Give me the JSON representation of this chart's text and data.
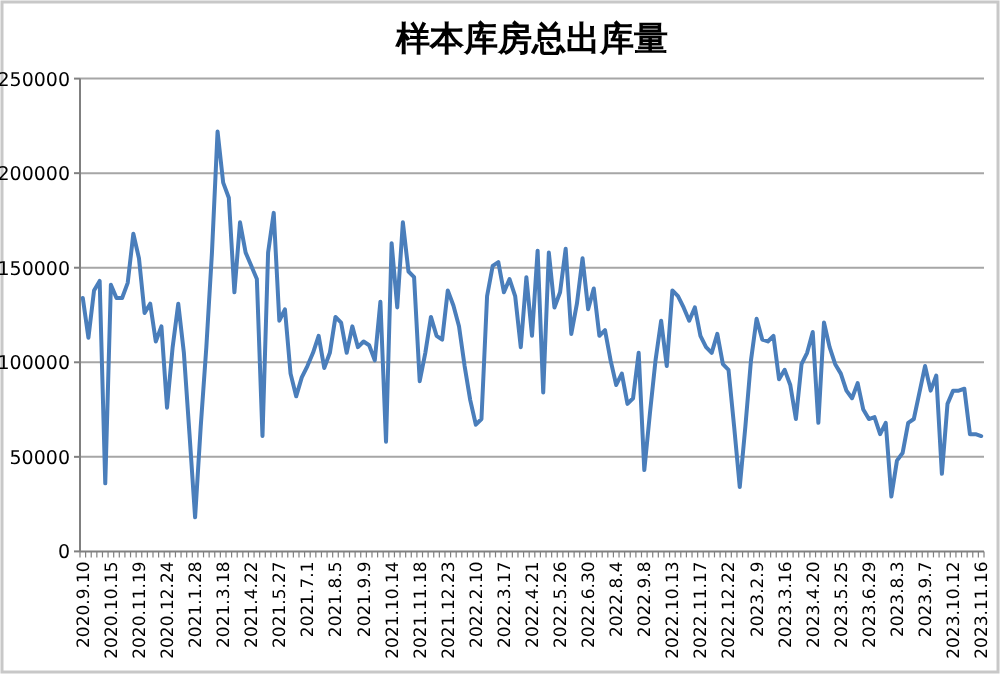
{
  "chart_data": {
    "type": "line",
    "title": "样本库房总出库量",
    "categories": [
      "2020.9.10",
      null,
      null,
      null,
      null,
      "2020.10.15",
      null,
      null,
      null,
      null,
      "2020.11.19",
      null,
      null,
      null,
      null,
      "2020.12.24",
      null,
      null,
      null,
      null,
      "2021.1.28",
      null,
      null,
      null,
      null,
      "2021.3.18",
      null,
      null,
      null,
      null,
      "2021.4.22",
      null,
      null,
      null,
      null,
      "2021.5.27",
      null,
      null,
      null,
      null,
      "2021.7.1",
      null,
      null,
      null,
      null,
      "2021.8.5",
      null,
      null,
      null,
      null,
      "2021.9.9",
      null,
      null,
      null,
      null,
      "2021.10.14",
      null,
      null,
      null,
      null,
      "2021.11.18",
      null,
      null,
      null,
      null,
      "2021.12.23",
      null,
      null,
      null,
      null,
      "2022.2.10",
      null,
      null,
      null,
      null,
      "2022.3.17",
      null,
      null,
      null,
      null,
      "2022.4.21",
      null,
      null,
      null,
      null,
      "2022.5.26",
      null,
      null,
      null,
      null,
      "2022.6.30",
      null,
      null,
      null,
      null,
      "2022.8.4",
      null,
      null,
      null,
      null,
      "2022.9.8",
      null,
      null,
      null,
      null,
      "2022.10.13",
      null,
      null,
      null,
      null,
      "2022.11.17",
      null,
      null,
      null,
      null,
      "2022.12.22",
      null,
      null,
      null,
      null,
      "2023.2.9",
      null,
      null,
      null,
      null,
      "2023.3.16",
      null,
      null,
      null,
      null,
      "2023.4.20",
      null,
      null,
      null,
      null,
      "2023.5.25",
      null,
      null,
      null,
      null,
      "2023.6.29",
      null,
      null,
      null,
      null,
      "2023.8.3",
      null,
      null,
      null,
      null,
      "2023.9.7",
      null,
      null,
      null,
      null,
      "2023.10.12",
      null,
      null,
      null,
      null,
      "2023.11.16"
    ],
    "values": [
      134000,
      113000,
      138000,
      143000,
      36000,
      141000,
      134000,
      134000,
      142000,
      168000,
      155000,
      126000,
      131000,
      111000,
      119000,
      76000,
      108000,
      131000,
      105000,
      62000,
      18000,
      66000,
      108000,
      158000,
      222000,
      195000,
      187000,
      137000,
      174000,
      158000,
      151000,
      144000,
      61000,
      158000,
      179000,
      122000,
      128000,
      94000,
      82000,
      92000,
      98000,
      105000,
      114000,
      97000,
      105000,
      124000,
      121000,
      105000,
      119000,
      108000,
      111000,
      109000,
      101000,
      132000,
      58000,
      163000,
      129000,
      174000,
      148000,
      145000,
      90000,
      105000,
      124000,
      114000,
      112000,
      138000,
      130000,
      119000,
      98000,
      80000,
      67000,
      70000,
      135000,
      151000,
      153000,
      137000,
      144000,
      135000,
      108000,
      145000,
      114000,
      159000,
      84000,
      158000,
      129000,
      137000,
      160000,
      115000,
      131000,
      155000,
      128000,
      139000,
      114000,
      117000,
      101000,
      88000,
      94000,
      78000,
      81000,
      105000,
      43000,
      73000,
      101000,
      122000,
      98000,
      138000,
      135000,
      129000,
      122000,
      129000,
      114000,
      108000,
      105000,
      115000,
      99000,
      96000,
      66000,
      34000,
      66000,
      101000,
      123000,
      112000,
      111000,
      114000,
      91000,
      96000,
      88000,
      70000,
      99000,
      105000,
      116000,
      68000,
      121000,
      108000,
      99000,
      94000,
      85000,
      81000,
      89000,
      75000,
      70000,
      71000,
      62000,
      68000,
      29000,
      48000,
      52000,
      68000,
      70000,
      84000,
      98000,
      85000,
      93000,
      41000,
      78000,
      85000,
      85000,
      86000,
      62000,
      62000,
      61000
    ],
    "color": "#4a7ebb",
    "ylim": [
      0,
      250000
    ],
    "yticks": [
      0,
      50000,
      100000,
      150000,
      200000,
      250000
    ],
    "grid": "y"
  }
}
